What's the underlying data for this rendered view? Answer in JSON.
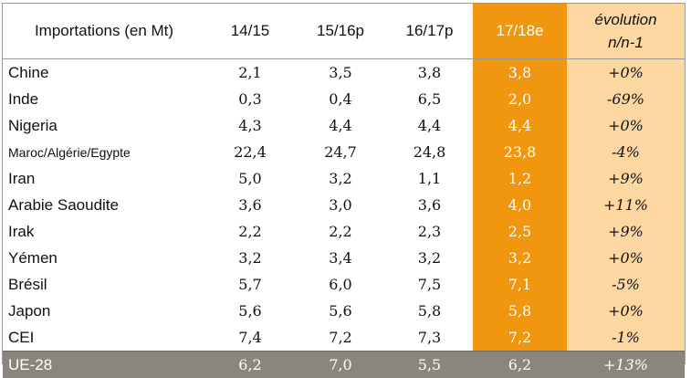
{
  "header": {
    "label": "Importations (en Mt)",
    "c1": "14/15",
    "c2": "15/16p",
    "c3": "16/17p",
    "c4": "17/18e",
    "c5_line1": "évolution",
    "c5_line2": "n/n-1"
  },
  "rows": [
    {
      "label": "Chine",
      "v1": "2,1",
      "v2": "3,5",
      "v3": "3,8",
      "v4": "3,8",
      "evo": "+0%"
    },
    {
      "label": "Inde",
      "v1": "0,3",
      "v2": "0,4",
      "v3": "6,5",
      "v4": "2,0",
      "evo": "-69%"
    },
    {
      "label": "Nigeria",
      "v1": "4,3",
      "v2": "4,4",
      "v3": "4,4",
      "v4": "4,4",
      "evo": "+0%"
    },
    {
      "label": "Maroc/Algérie/Egypte",
      "v1": "22,4",
      "v2": "24,7",
      "v3": "24,8",
      "v4": "23,8",
      "evo": "-4%"
    },
    {
      "label": "Iran",
      "v1": "5,0",
      "v2": "3,2",
      "v3": "1,1",
      "v4": "1,2",
      "evo": "+9%"
    },
    {
      "label": "Arabie Saoudite",
      "v1": "3,6",
      "v2": "3,0",
      "v3": "3,6",
      "v4": "4,0",
      "evo": "+11%"
    },
    {
      "label": "Irak",
      "v1": "2,2",
      "v2": "2,2",
      "v3": "2,3",
      "v4": "2,5",
      "evo": "+9%"
    },
    {
      "label": "Yémen",
      "v1": "3,2",
      "v2": "3,4",
      "v3": "3,2",
      "v4": "3,2",
      "evo": "+0%"
    },
    {
      "label": "Brésil",
      "v1": "5,7",
      "v2": "6,0",
      "v3": "7,5",
      "v4": "7,1",
      "evo": "-5%"
    },
    {
      "label": "Japon",
      "v1": "5,6",
      "v2": "5,6",
      "v3": "5,8",
      "v4": "5,8",
      "evo": "+0%"
    },
    {
      "label": "CEI",
      "v1": "7,4",
      "v2": "7,2",
      "v3": "7,3",
      "v4": "7,2",
      "evo": "-1%"
    }
  ],
  "total": {
    "label": "UE-28",
    "v1": "6,2",
    "v2": "7,0",
    "v3": "5,5",
    "v4": "6,2",
    "evo": "+13%"
  },
  "colors": {
    "highlight_column": "#f0960f",
    "evolution_column": "#fcd7a2",
    "total_row": "#8b867d"
  }
}
